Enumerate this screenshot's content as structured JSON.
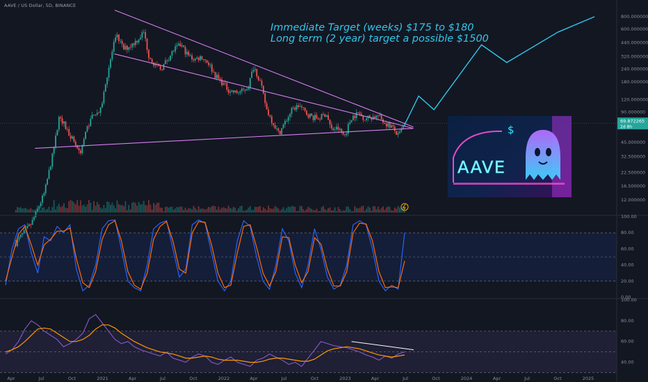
{
  "header": {
    "symbol_line": "AAVE / US Dollar, 5D, BINANCE"
  },
  "annotations": {
    "line1": "Immediate Target (weeks) $175 to $180",
    "line2": "Long term (2 year) target a possible $1500"
  },
  "price_badge": {
    "price": "69.872265",
    "countdown": "2d 8h",
    "color": "#26a69a"
  },
  "logo": {
    "text": "AAVE",
    "symbol": "$",
    "colors": {
      "bg1": "#0b1b3a",
      "neon_pink": "#ff4fd8",
      "neon_cyan": "#39e6ff",
      "ghost": "#7ee8ff"
    }
  },
  "colors": {
    "up": "#26a69a",
    "down": "#ef5350",
    "wedge": "#d77ff0",
    "target": "#33c6ea",
    "stoch_k": "#2962ff",
    "stoch_d": "#ff6d00",
    "rsi": "#7e57c2",
    "rsi_ma": "#ff9800"
  },
  "chart_data": [
    {
      "type": "candlestick",
      "title": "AAVE / US Dollar, 5D, BINANCE",
      "scale": "log",
      "y_ticks": [
        "800.000000",
        "600.000000",
        "440.000000",
        "320.000000",
        "240.000000",
        "180.000000",
        "120.000000",
        "90.000000",
        "45.000000",
        "32.500000",
        "22.500000",
        "16.500000",
        "12.000000"
      ],
      "last_price": 69.872265,
      "x_ticks": [
        "Apr",
        "Jul",
        "Oct",
        "2021",
        "Apr",
        "Jul",
        "Oct",
        "2022",
        "Apr",
        "Jul",
        "Oct",
        "2023",
        "Apr",
        "Jul",
        "Oct",
        "2024",
        "Apr",
        "Jul",
        "Oct",
        "2025"
      ],
      "close_path": [
        {
          "date": "2020-04-15",
          "close": 4.5
        },
        {
          "date": "2020-06-01",
          "close": 7
        },
        {
          "date": "2020-07-10",
          "close": 14
        },
        {
          "date": "2020-08-05",
          "close": 35
        },
        {
          "date": "2020-08-25",
          "close": 85
        },
        {
          "date": "2020-09-15",
          "close": 60
        },
        {
          "date": "2020-10-05",
          "close": 48
        },
        {
          "date": "2020-10-25",
          "close": 35
        },
        {
          "date": "2020-11-15",
          "close": 62
        },
        {
          "date": "2020-12-05",
          "close": 88
        },
        {
          "date": "2020-12-25",
          "close": 90
        },
        {
          "date": "2021-01-15",
          "close": 210
        },
        {
          "date": "2021-02-05",
          "close": 440
        },
        {
          "date": "2021-02-15",
          "close": 510
        },
        {
          "date": "2021-03-05",
          "close": 380
        },
        {
          "date": "2021-03-25",
          "close": 410
        },
        {
          "date": "2021-04-15",
          "close": 470
        },
        {
          "date": "2021-05-05",
          "close": 560
        },
        {
          "date": "2021-05-20",
          "close": 330
        },
        {
          "date": "2021-06-10",
          "close": 260
        },
        {
          "date": "2021-06-25",
          "close": 240
        },
        {
          "date": "2021-07-15",
          "close": 300
        },
        {
          "date": "2021-08-05",
          "close": 380
        },
        {
          "date": "2021-08-25",
          "close": 420
        },
        {
          "date": "2021-09-15",
          "close": 330
        },
        {
          "date": "2021-10-05",
          "close": 300
        },
        {
          "date": "2021-10-25",
          "close": 320
        },
        {
          "date": "2021-11-15",
          "close": 280
        },
        {
          "date": "2021-12-05",
          "close": 210
        },
        {
          "date": "2021-12-25",
          "close": 180
        },
        {
          "date": "2022-01-15",
          "close": 150
        },
        {
          "date": "2022-02-05",
          "close": 140
        },
        {
          "date": "2022-02-25",
          "close": 145
        },
        {
          "date": "2022-03-15",
          "close": 160
        },
        {
          "date": "2022-04-01",
          "close": 260
        },
        {
          "date": "2022-04-20",
          "close": 180
        },
        {
          "date": "2022-05-10",
          "close": 95
        },
        {
          "date": "2022-05-25",
          "close": 75
        },
        {
          "date": "2022-06-15",
          "close": 55
        },
        {
          "date": "2022-07-05",
          "close": 72
        },
        {
          "date": "2022-07-25",
          "close": 95
        },
        {
          "date": "2022-08-15",
          "close": 105
        },
        {
          "date": "2022-09-05",
          "close": 88
        },
        {
          "date": "2022-09-25",
          "close": 80
        },
        {
          "date": "2022-10-15",
          "close": 78
        },
        {
          "date": "2022-11-05",
          "close": 88
        },
        {
          "date": "2022-11-20",
          "close": 60
        },
        {
          "date": "2022-12-10",
          "close": 62
        },
        {
          "date": "2022-12-30",
          "close": 52
        },
        {
          "date": "2023-01-20",
          "close": 80
        },
        {
          "date": "2023-02-10",
          "close": 88
        },
        {
          "date": "2023-03-01",
          "close": 78
        },
        {
          "date": "2023-03-20",
          "close": 80
        },
        {
          "date": "2023-04-10",
          "close": 82
        },
        {
          "date": "2023-05-01",
          "close": 70
        },
        {
          "date": "2023-05-20",
          "close": 65
        },
        {
          "date": "2023-06-10",
          "close": 52
        },
        {
          "date": "2023-06-20",
          "close": 60
        },
        {
          "date": "2023-07-01",
          "close": 69.87
        }
      ],
      "falling_wedge": {
        "upper": [
          {
            "date": "2021-02-15",
            "price": 900
          },
          {
            "date": "2023-07-25",
            "price": 64
          }
        ],
        "lower_1": [
          {
            "date": "2021-02-15",
            "price": 330
          },
          {
            "date": "2023-07-25",
            "price": 62
          }
        ],
        "lower_2": [
          {
            "date": "2020-06-20",
            "price": 38
          },
          {
            "date": "2023-07-25",
            "price": 62
          }
        ]
      },
      "projected_path": [
        {
          "date": "2023-07-01",
          "price": 69.87
        },
        {
          "date": "2023-08-10",
          "price": 130
        },
        {
          "date": "2023-09-25",
          "price": 95
        },
        {
          "date": "2024-02-15",
          "price": 420
        },
        {
          "date": "2024-05-01",
          "price": 280
        },
        {
          "date": "2024-10-01",
          "price": 560
        }
      ],
      "volume_note": "histogram at bottom of price pane"
    },
    {
      "type": "line",
      "title": "",
      "y_ticks": [
        "100.00",
        "80.00",
        "60.00",
        "40.00",
        "20.00",
        "0.00"
      ],
      "bands": [
        20,
        80
      ],
      "midline": 50,
      "series": [
        {
          "name": "",
          "color": "#2962ff",
          "values": [
            15,
            60,
            85,
            90,
            55,
            30,
            75,
            70,
            88,
            80,
            90,
            35,
            8,
            15,
            40,
            85,
            95,
            96,
            60,
            20,
            12,
            8,
            40,
            85,
            92,
            95,
            60,
            25,
            35,
            90,
            96,
            92,
            55,
            20,
            8,
            20,
            70,
            95,
            88,
            50,
            20,
            10,
            40,
            85,
            70,
            30,
            12,
            40,
            85,
            60,
            25,
            10,
            15,
            40,
            90,
            95,
            90,
            60,
            20,
            8,
            15,
            10,
            80
          ]
        },
        {
          "name": "",
          "color": "#ff6d00",
          "values": [
            20,
            50,
            78,
            88,
            65,
            40,
            65,
            72,
            82,
            82,
            86,
            48,
            18,
            12,
            32,
            72,
            90,
            95,
            70,
            32,
            15,
            10,
            30,
            72,
            88,
            94,
            70,
            35,
            30,
            80,
            94,
            93,
            65,
            30,
            12,
            15,
            55,
            88,
            90,
            62,
            30,
            14,
            32,
            75,
            74,
            40,
            18,
            32,
            74,
            66,
            35,
            14,
            14,
            32,
            80,
            92,
            91,
            70,
            32,
            12,
            13,
            12,
            45
          ]
        }
      ]
    },
    {
      "type": "line",
      "title": "",
      "y_ticks": [
        "100.00",
        "80.00",
        "60.00",
        "40.00"
      ],
      "bands": [
        30,
        70
      ],
      "midline": 50,
      "series": [
        {
          "name": "",
          "color": "#7e57c2",
          "values": [
            48,
            52,
            60,
            72,
            80,
            76,
            70,
            66,
            62,
            55,
            58,
            62,
            68,
            82,
            86,
            78,
            70,
            62,
            58,
            60,
            55,
            52,
            50,
            48,
            46,
            50,
            44,
            42,
            40,
            45,
            48,
            46,
            40,
            38,
            42,
            45,
            40,
            38,
            36,
            42,
            44,
            48,
            45,
            42,
            38,
            40,
            36,
            44,
            52,
            60,
            58,
            56,
            55,
            54,
            52,
            50,
            47,
            45,
            42,
            46,
            44,
            48,
            50
          ]
        },
        {
          "name": "",
          "color": "#ff9800",
          "values": [
            50,
            52,
            55,
            60,
            66,
            72,
            73,
            72,
            68,
            64,
            60,
            60,
            62,
            66,
            72,
            76,
            76,
            73,
            68,
            64,
            60,
            57,
            54,
            52,
            50,
            49,
            48,
            46,
            44,
            44,
            45,
            46,
            45,
            43,
            42,
            42,
            42,
            41,
            40,
            40,
            41,
            43,
            44,
            44,
            43,
            42,
            41,
            41,
            43,
            47,
            51,
            53,
            54,
            55,
            54,
            53,
            51,
            49,
            47,
            46,
            45,
            46,
            47
          ]
        }
      ],
      "trendline": {
        "from": {
          "date": "2023-01-20",
          "rsi": 60
        },
        "to": {
          "date": "2023-07-05",
          "rsi": 52
        }
      }
    }
  ]
}
